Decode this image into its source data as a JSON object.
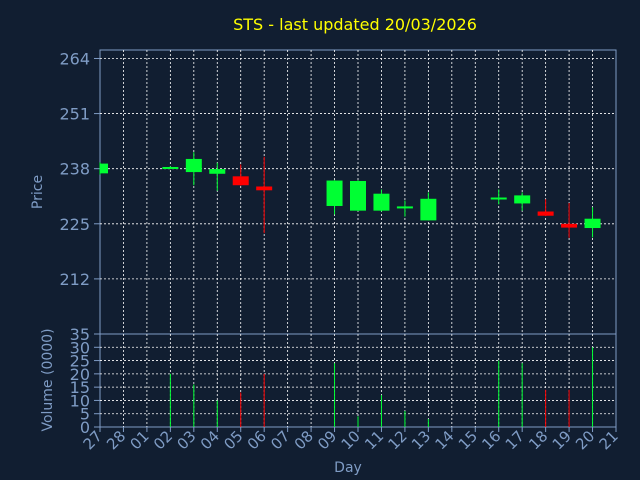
{
  "chart_data": {
    "type": "candlestick",
    "title": "STS - last updated 20/03/2026",
    "xlabel": "Day",
    "price_panel": {
      "ylabel": "Price",
      "yticks": [
        "264",
        "251",
        "238",
        "225",
        "212"
      ],
      "ylim": [
        199,
        266
      ]
    },
    "volume_panel": {
      "ylabel": "Volume (0000)",
      "yticks": [
        "35",
        "30",
        "25",
        "20",
        "15",
        "10",
        "5",
        "0"
      ],
      "ylim": [
        0,
        35
      ]
    },
    "x_tick_labels": [
      "27",
      "28",
      "01",
      "02",
      "03",
      "04",
      "05",
      "06",
      "07",
      "08",
      "09",
      "10",
      "11",
      "12",
      "13",
      "14",
      "15",
      "16",
      "17",
      "18",
      "19",
      "20",
      "21"
    ],
    "candles": [
      {
        "day": "27",
        "open": 236.9,
        "close": 239.2,
        "high": 239.5,
        "low": 236.6,
        "volume": 0
      },
      {
        "day": "02",
        "open": 238.0,
        "close": 238.4,
        "high": 238.6,
        "low": 237.9,
        "volume": 20
      },
      {
        "day": "03",
        "open": 237.2,
        "close": 240.3,
        "high": 241.9,
        "low": 234.1,
        "volume": 16
      },
      {
        "day": "04",
        "open": 236.8,
        "close": 237.9,
        "high": 239.4,
        "low": 232.8,
        "volume": 10
      },
      {
        "day": "05",
        "open": 236.2,
        "close": 234.1,
        "high": 239.0,
        "low": 234.0,
        "volume": 13
      },
      {
        "day": "06",
        "open": 233.8,
        "close": 232.9,
        "high": 240.8,
        "low": 222.8,
        "volume": 20
      },
      {
        "day": "09",
        "open": 229.2,
        "close": 235.2,
        "high": 235.3,
        "low": 227.2,
        "volume": 24
      },
      {
        "day": "10",
        "open": 228.1,
        "close": 235.1,
        "high": 235.3,
        "low": 228.0,
        "volume": 4
      },
      {
        "day": "11",
        "open": 228.1,
        "close": 232.1,
        "high": 233.1,
        "low": 227.9,
        "volume": 12
      },
      {
        "day": "12",
        "open": 228.8,
        "close": 229.1,
        "high": 230.5,
        "low": 226.7,
        "volume": 6
      },
      {
        "day": "13",
        "open": 225.8,
        "close": 230.9,
        "high": 232.4,
        "low": 225.8,
        "volume": 3
      },
      {
        "day": "16",
        "open": 230.8,
        "close": 231.2,
        "high": 233.1,
        "low": 229.6,
        "volume": 25
      },
      {
        "day": "17",
        "open": 229.8,
        "close": 231.7,
        "high": 232.4,
        "low": 228.1,
        "volume": 24
      },
      {
        "day": "18",
        "open": 227.9,
        "close": 226.9,
        "high": 230.8,
        "low": 226.8,
        "volume": 14
      },
      {
        "day": "19",
        "open": 225.0,
        "close": 224.1,
        "high": 229.9,
        "low": 221.7,
        "volume": 14
      },
      {
        "day": "20",
        "open": 224.0,
        "close": 226.2,
        "high": 228.9,
        "low": 221.8,
        "volume": 30
      }
    ],
    "colors": {
      "up": "#00ff33",
      "down": "#ff0000",
      "title": "#ffff00",
      "axis_text": "#7f9cc5",
      "grid": "#ffffff",
      "background": "#111e31"
    },
    "grid": true
  }
}
